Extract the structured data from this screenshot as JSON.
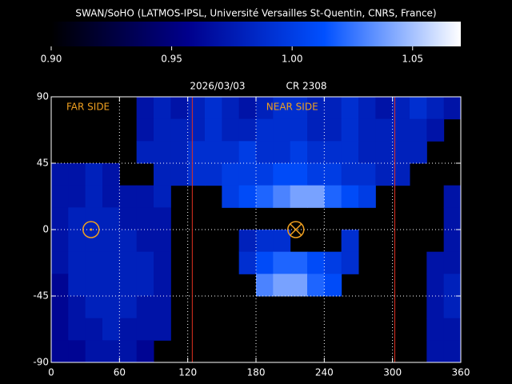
{
  "chart_data": {
    "type": "heatmap",
    "title": "SWAN/SoHO (LATMOS-IPSL, Université Versailles St-Quentin, CNRS, France)",
    "date": "2026/03/03",
    "rotation": "CR 2308",
    "xlim": [
      0,
      360
    ],
    "ylim": [
      -90,
      90
    ],
    "xticks": [
      0,
      60,
      120,
      180,
      240,
      300,
      360
    ],
    "yticks": [
      -90,
      -45,
      0,
      45,
      90
    ],
    "grid": true,
    "lon_bins": [
      0,
      15,
      30,
      45,
      60,
      75,
      90,
      105,
      120,
      135,
      150,
      165,
      180,
      195,
      210,
      225,
      240,
      255,
      270,
      285,
      300,
      315,
      330,
      345,
      360
    ],
    "lat_bins": [
      90,
      75,
      60,
      45,
      30,
      15,
      0,
      -15,
      -30,
      -45,
      -60,
      -75,
      -90
    ],
    "colormap": [
      "#000000",
      "#00008c",
      "#0050ff",
      "#ffffff"
    ],
    "colorbar": {
      "lim": [
        0.9,
        1.07
      ],
      "ticks": [
        {
          "value": 0.9,
          "label": "0.90"
        },
        0.95,
        {
          "value": 1.0,
          "label": "1.00"
        },
        1.05
      ]
    },
    "red_lines": [
      124,
      302
    ],
    "far_side": {
      "label": "FAR SIDE",
      "lon": 35,
      "lat": 0
    },
    "near_side": {
      "label": "NEAR SIDE",
      "lon": 215,
      "lat": 0
    },
    "values": [
      [
        null,
        null,
        null,
        null,
        null,
        0.97,
        0.98,
        0.97,
        0.98,
        0.99,
        0.98,
        0.97,
        0.98,
        0.99,
        0.99,
        0.98,
        0.98,
        0.99,
        0.98,
        0.97,
        0.98,
        0.99,
        0.98,
        0.97
      ],
      [
        null,
        null,
        null,
        null,
        null,
        0.97,
        0.98,
        0.98,
        0.98,
        0.99,
        0.98,
        0.98,
        0.99,
        0.99,
        0.99,
        0.98,
        0.98,
        0.99,
        0.98,
        0.98,
        0.98,
        0.98,
        0.97,
        null
      ],
      [
        null,
        null,
        null,
        null,
        null,
        0.98,
        0.98,
        0.98,
        0.99,
        0.99,
        0.99,
        1.0,
        0.99,
        0.99,
        1.0,
        0.99,
        0.99,
        0.99,
        0.98,
        0.98,
        0.98,
        0.98,
        null,
        null
      ],
      [
        0.97,
        0.97,
        0.98,
        0.97,
        null,
        null,
        0.98,
        0.98,
        0.99,
        0.99,
        1.0,
        1.0,
        1.0,
        1.01,
        1.01,
        1.0,
        1.0,
        0.99,
        0.99,
        0.98,
        0.98,
        null,
        null,
        null
      ],
      [
        0.97,
        0.97,
        0.98,
        0.97,
        0.97,
        0.97,
        0.98,
        null,
        null,
        null,
        1.0,
        1.01,
        1.02,
        1.03,
        1.04,
        1.04,
        1.02,
        1.01,
        1.0,
        null,
        null,
        null,
        null,
        0.97
      ],
      [
        0.97,
        0.98,
        0.98,
        0.98,
        0.97,
        0.97,
        0.97,
        null,
        null,
        null,
        null,
        null,
        null,
        null,
        null,
        null,
        null,
        null,
        null,
        null,
        null,
        null,
        null,
        0.97
      ],
      [
        0.97,
        0.98,
        0.98,
        0.98,
        0.98,
        0.97,
        0.97,
        null,
        null,
        null,
        null,
        0.98,
        0.99,
        0.99,
        null,
        null,
        null,
        0.99,
        null,
        null,
        null,
        null,
        null,
        0.97
      ],
      [
        0.97,
        0.98,
        0.98,
        0.98,
        0.98,
        0.98,
        0.97,
        null,
        null,
        null,
        null,
        0.99,
        1.01,
        1.02,
        1.02,
        1.01,
        1.0,
        0.99,
        null,
        null,
        null,
        null,
        0.97,
        0.97
      ],
      [
        0.96,
        0.98,
        0.98,
        0.98,
        0.98,
        0.98,
        0.97,
        null,
        null,
        null,
        null,
        null,
        1.03,
        1.04,
        1.04,
        1.02,
        1.01,
        null,
        null,
        null,
        null,
        null,
        0.97,
        0.98
      ],
      [
        0.96,
        0.97,
        0.98,
        0.98,
        0.98,
        0.97,
        0.97,
        null,
        null,
        null,
        null,
        null,
        null,
        null,
        null,
        null,
        null,
        null,
        null,
        null,
        null,
        null,
        0.97,
        0.98
      ],
      [
        0.96,
        0.97,
        0.97,
        0.98,
        0.97,
        0.97,
        0.97,
        null,
        null,
        null,
        null,
        null,
        null,
        null,
        null,
        null,
        null,
        null,
        null,
        null,
        null,
        null,
        0.97,
        0.97
      ],
      [
        0.96,
        0.96,
        0.97,
        0.97,
        0.97,
        0.96,
        null,
        null,
        null,
        null,
        null,
        null,
        null,
        null,
        null,
        null,
        null,
        null,
        null,
        null,
        null,
        null,
        0.97,
        0.97
      ]
    ]
  }
}
